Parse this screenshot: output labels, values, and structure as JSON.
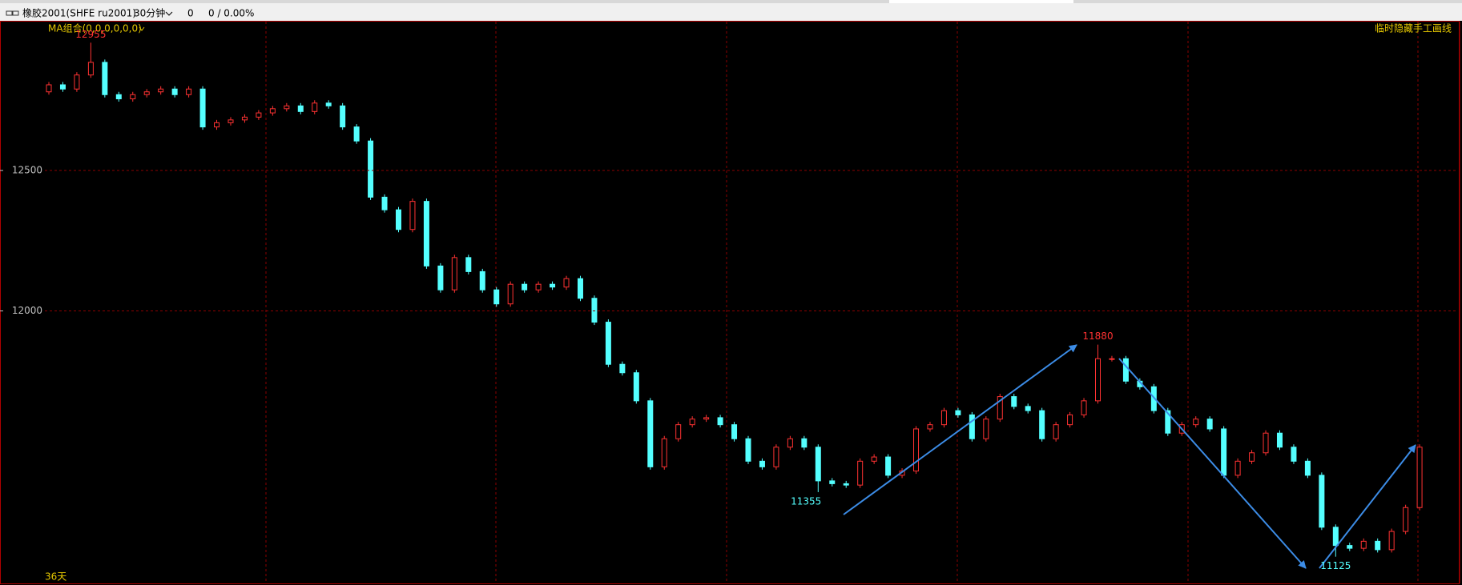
{
  "toolbar": {
    "symbol": "橡胶2001(SHFE ru2001)",
    "period": "30分钟",
    "position": "0",
    "change": "0 / 0.00%"
  },
  "chart_data": {
    "type": "candlestick",
    "indicator_label": "MA组合(0,0,0,0,0,0)",
    "right_label": "临时隐藏手工画线",
    "span_label": "36天",
    "up_color": "#ff3232",
    "down_color": "#54ffff",
    "grid": true,
    "grid_color": "#8c0000",
    "ylim": [
      11030,
      13030
    ],
    "yticks": [
      12000,
      12500
    ],
    "annotations": [
      "12955",
      "11355",
      "11880",
      "11125"
    ],
    "open": [
      12780,
      12805,
      12790,
      12840,
      12885,
      12770,
      12755,
      12770,
      12780,
      12790,
      12770,
      12790,
      12655,
      12670,
      12680,
      12690,
      12705,
      12720,
      12730,
      12710,
      12740,
      12730,
      12655,
      12605,
      12405,
      12360,
      12290,
      12390,
      12160,
      12075,
      12190,
      12140,
      12075,
      12025,
      12095,
      12075,
      12095,
      12085,
      12115,
      12045,
      11960,
      11810,
      11780,
      11680,
      11445,
      11545,
      11595,
      11615,
      11620,
      11595,
      11545,
      11465,
      11445,
      11515,
      11545,
      11515,
      11395,
      11385,
      11380,
      11465,
      11480,
      11415,
      11430,
      11580,
      11595,
      11645,
      11630,
      11545,
      11615,
      11695,
      11660,
      11645,
      11545,
      11595,
      11630,
      11680,
      11830,
      11830,
      11750,
      11730,
      11645,
      11565,
      11595,
      11615,
      11580,
      11415,
      11465,
      11495,
      11565,
      11515,
      11465,
      11415,
      11230,
      11165,
      11155,
      11180,
      11150,
      11215,
      11300
    ],
    "high": [
      12815,
      12815,
      12850,
      12955,
      12895,
      12780,
      12780,
      12790,
      12800,
      12800,
      12800,
      12800,
      12680,
      12690,
      12700,
      12715,
      12730,
      12740,
      12740,
      12750,
      12750,
      12740,
      12665,
      12615,
      12415,
      12370,
      12400,
      12400,
      12170,
      12200,
      12200,
      12150,
      12085,
      12105,
      12105,
      12105,
      12105,
      12125,
      12125,
      12055,
      11970,
      11820,
      11790,
      11690,
      11555,
      11605,
      11625,
      11630,
      11630,
      11605,
      11555,
      11475,
      11525,
      11555,
      11555,
      11525,
      11405,
      11395,
      11475,
      11490,
      11490,
      11440,
      11590,
      11605,
      11655,
      11655,
      11640,
      11625,
      11705,
      11705,
      11670,
      11655,
      11605,
      11640,
      11690,
      11880,
      11840,
      11840,
      11760,
      11740,
      11655,
      11605,
      11625,
      11625,
      11590,
      11475,
      11505,
      11575,
      11575,
      11525,
      11475,
      11425,
      11240,
      11175,
      11190,
      11190,
      11225,
      11310,
      11525
    ],
    "low": [
      12770,
      12780,
      12780,
      12830,
      12760,
      12745,
      12745,
      12760,
      12770,
      12760,
      12760,
      12645,
      12645,
      12660,
      12670,
      12680,
      12695,
      12710,
      12700,
      12700,
      12720,
      12645,
      12595,
      12395,
      12350,
      12280,
      12280,
      12150,
      12065,
      12065,
      12130,
      12065,
      12015,
      12015,
      12065,
      12065,
      12075,
      12075,
      12035,
      11950,
      11800,
      11770,
      11670,
      11435,
      11435,
      11535,
      11585,
      11605,
      11585,
      11535,
      11455,
      11435,
      11435,
      11505,
      11505,
      11355,
      11375,
      11370,
      11370,
      11455,
      11405,
      11405,
      11420,
      11570,
      11585,
      11620,
      11535,
      11535,
      11605,
      11650,
      11635,
      11535,
      11535,
      11585,
      11620,
      11670,
      11820,
      11740,
      11720,
      11635,
      11555,
      11555,
      11585,
      11570,
      11405,
      11405,
      11455,
      11485,
      11505,
      11455,
      11405,
      11220,
      11125,
      11145,
      11145,
      11140,
      11140,
      11205,
      11290
    ],
    "close": [
      12805,
      12790,
      12840,
      12885,
      12770,
      12755,
      12770,
      12780,
      12790,
      12770,
      12790,
      12655,
      12670,
      12680,
      12690,
      12705,
      12720,
      12730,
      12710,
      12740,
      12730,
      12655,
      12605,
      12405,
      12360,
      12290,
      12390,
      12160,
      12075,
      12190,
      12140,
      12075,
      12025,
      12095,
      12075,
      12095,
      12085,
      12115,
      12045,
      11960,
      11810,
      11780,
      11680,
      11445,
      11545,
      11595,
      11615,
      11620,
      11595,
      11545,
      11465,
      11445,
      11515,
      11545,
      11515,
      11395,
      11385,
      11380,
      11465,
      11480,
      11415,
      11430,
      11580,
      11595,
      11645,
      11630,
      11545,
      11615,
      11695,
      11660,
      11645,
      11545,
      11595,
      11630,
      11680,
      11830,
      11830,
      11750,
      11730,
      11645,
      11565,
      11595,
      11615,
      11580,
      11415,
      11465,
      11495,
      11565,
      11515,
      11465,
      11415,
      11230,
      11165,
      11155,
      11180,
      11150,
      11215,
      11300,
      11515
    ]
  }
}
